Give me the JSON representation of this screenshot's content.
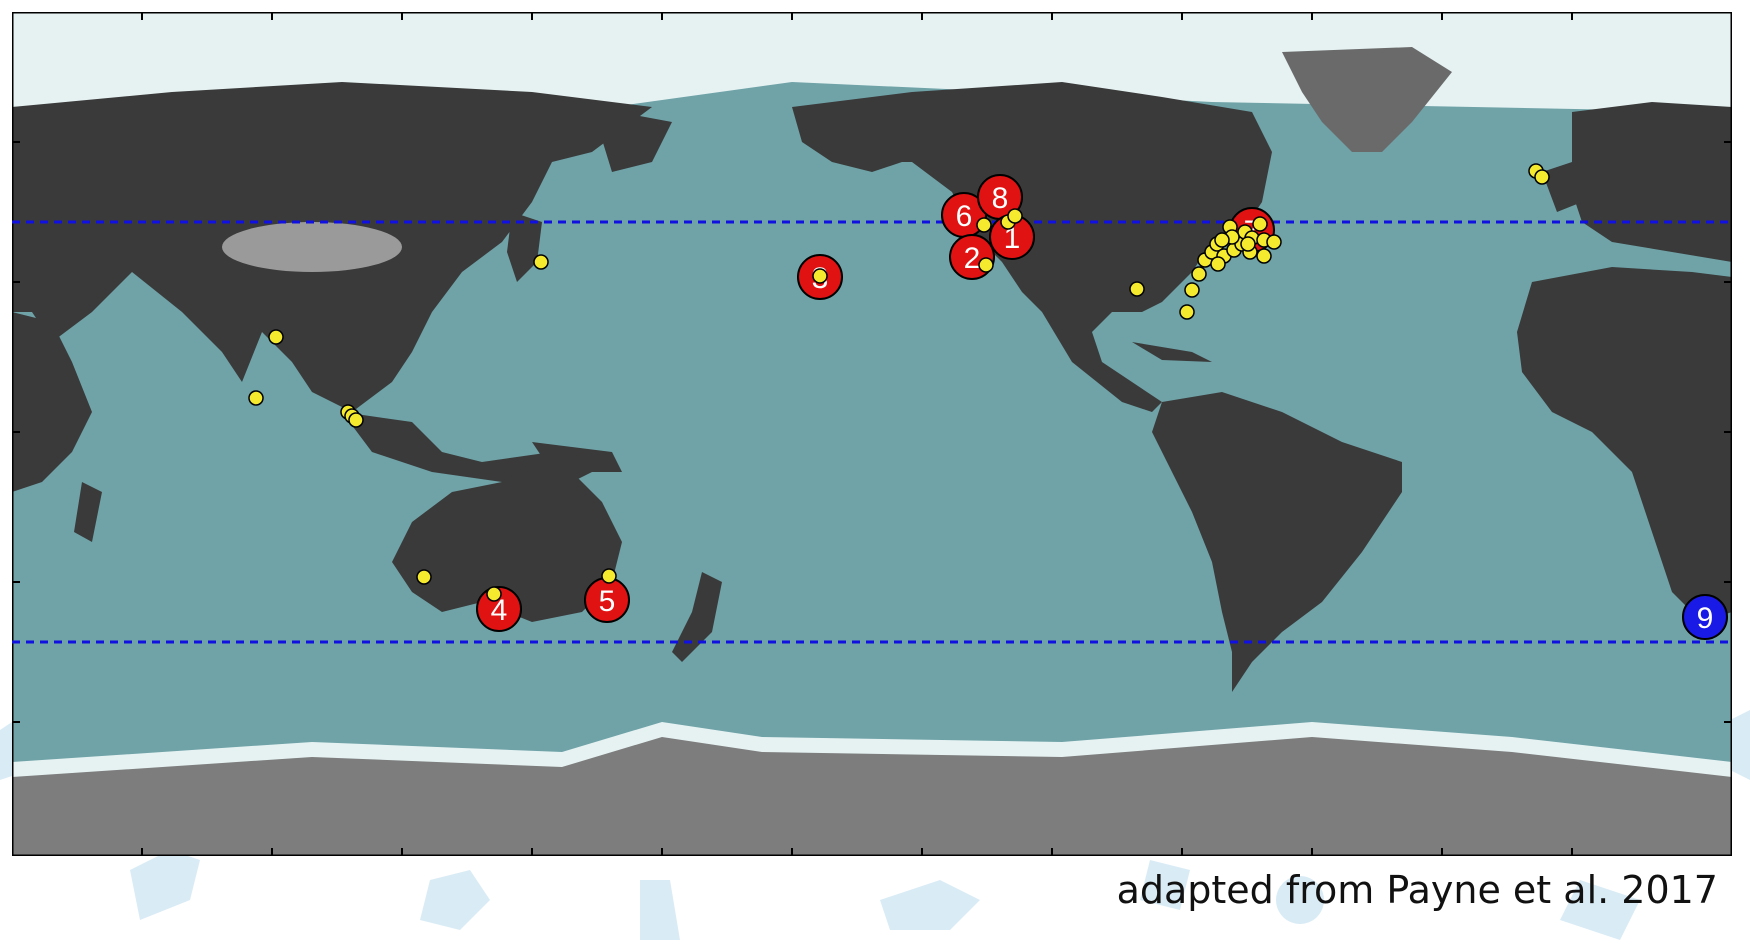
{
  "credit": "adapted from Payne et al. 2017",
  "colors": {
    "ocean": "#6fa3a8",
    "ocean_deep": "#5a8f96",
    "land": "#3a3a3a",
    "ice": "#7a7a7a",
    "shelf": "#e6f2f2",
    "dashed_line": "#1010e0",
    "red_marker": "#e01212",
    "blue_marker": "#1a1ae6",
    "yellow_marker": "#f5ea2e",
    "background_pattern": "#cfe6f3"
  },
  "numbered_markers": [
    {
      "label": "1",
      "color": "red"
    },
    {
      "label": "2",
      "color": "red"
    },
    {
      "label": "3",
      "color": "red"
    },
    {
      "label": "4",
      "color": "red"
    },
    {
      "label": "5",
      "color": "red"
    },
    {
      "label": "6",
      "color": "red"
    },
    {
      "label": "7",
      "color": "red"
    },
    {
      "label": "8",
      "color": "red"
    },
    {
      "label": "9",
      "color": "blue"
    }
  ],
  "dashed_lines": 2,
  "yellow_site_count": 38
}
